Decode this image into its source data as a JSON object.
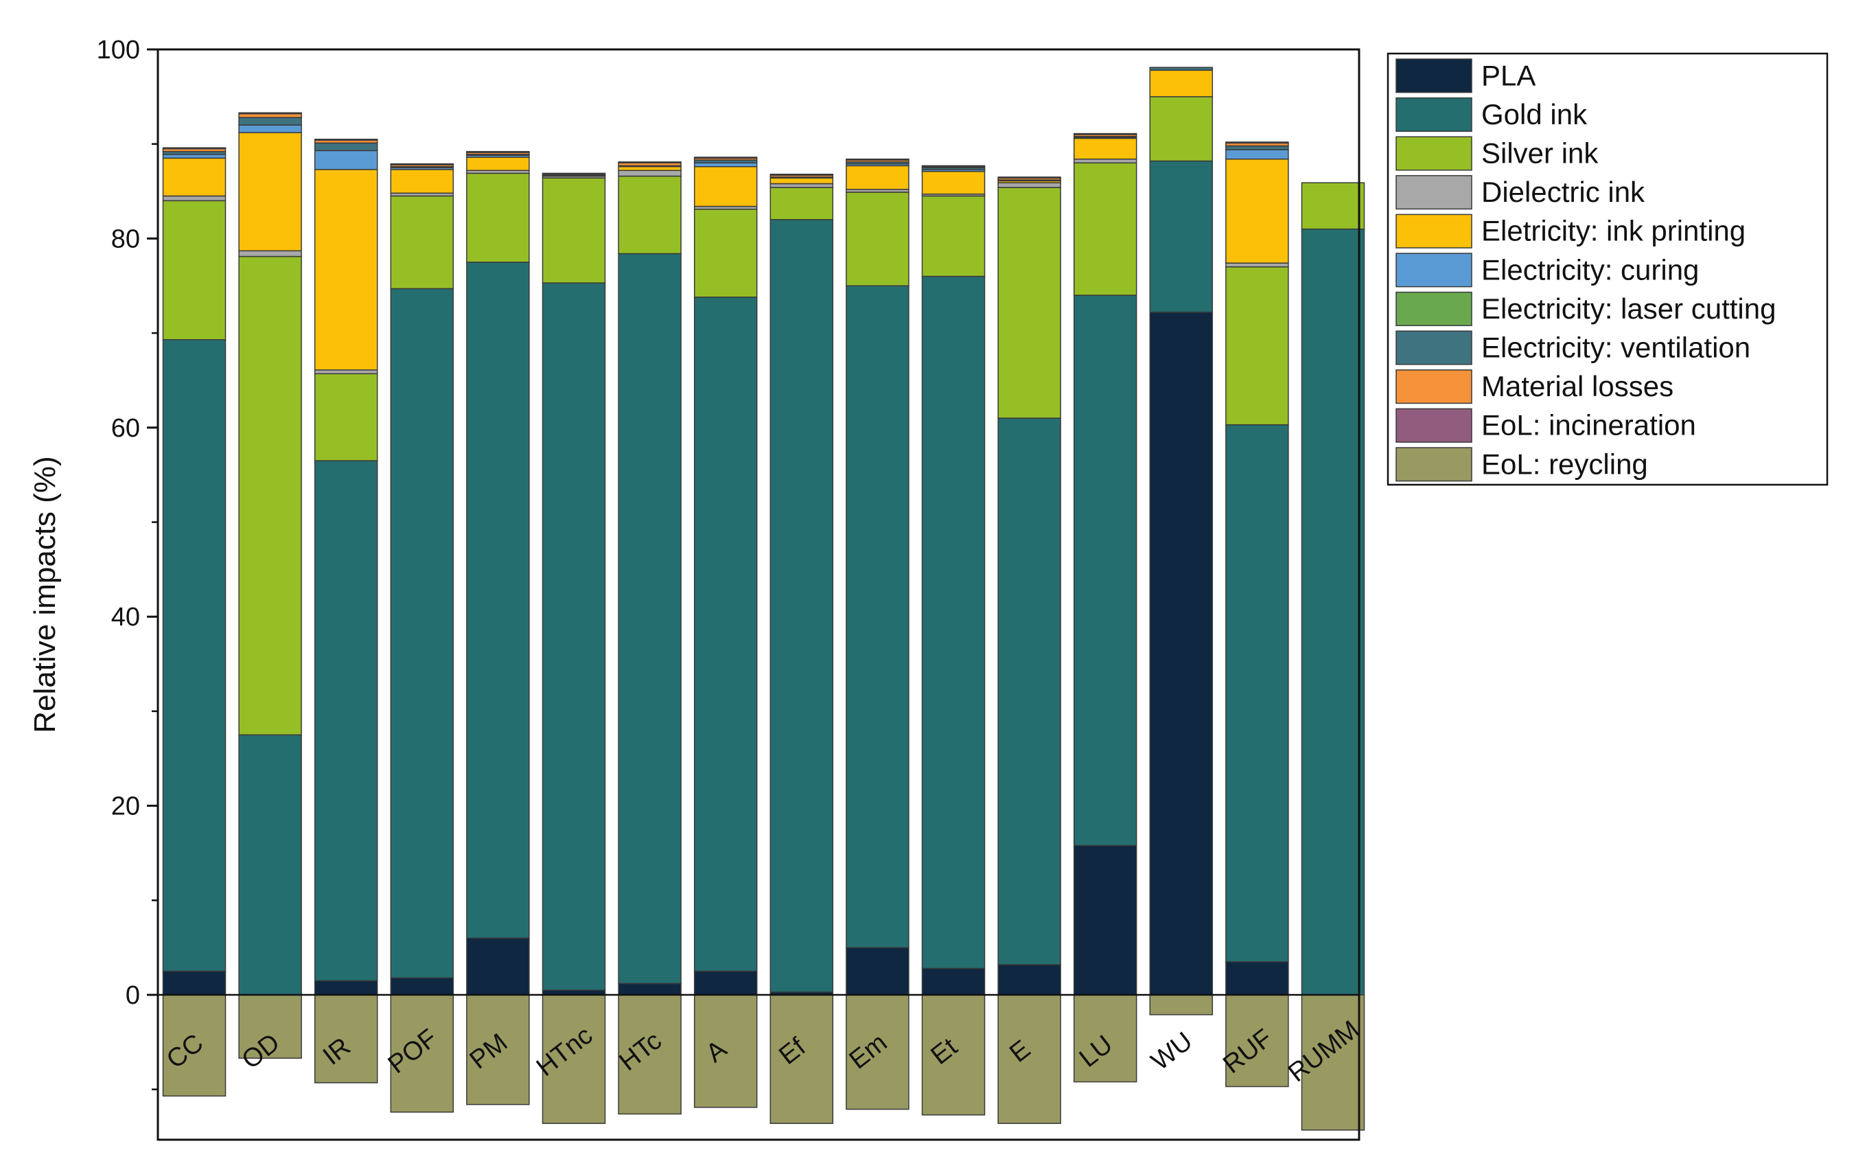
{
  "chart_data": {
    "type": "bar",
    "stacked": true,
    "title": "",
    "xlabel": "",
    "ylabel": "Relative impacts (%)",
    "ylim": [
      -15,
      100
    ],
    "yticks": [
      0,
      20,
      40,
      60,
      80,
      100
    ],
    "legend_position": "right",
    "categories": [
      "CC",
      "OD",
      "IR",
      "POF",
      "PM",
      "HTnc",
      "HTc",
      "A",
      "Ef",
      "Em",
      "Et",
      "E",
      "LU",
      "WU",
      "RUF",
      "RUMM"
    ],
    "series": [
      {
        "name": "PLA",
        "color": "#0f2740",
        "values": [
          2.5,
          0,
          1.5,
          1.8,
          6,
          0.5,
          1.2,
          2.5,
          0.3,
          5,
          2.8,
          3.2,
          15.8,
          72.2,
          3.5,
          0
        ]
      },
      {
        "name": "Gold ink",
        "color": "#256e70",
        "values": [
          66.8,
          27.5,
          55,
          72.9,
          71.5,
          74.8,
          77.2,
          71.3,
          81.7,
          70,
          73.2,
          57.8,
          58.2,
          16,
          56.8,
          81
        ]
      },
      {
        "name": "Silver ink",
        "color": "#96bf26",
        "values": [
          14.7,
          50.6,
          9.2,
          9.8,
          9.4,
          11.1,
          8.2,
          9.3,
          3.4,
          9.9,
          8.5,
          24.4,
          14,
          6.8,
          16.7,
          4.9
        ]
      },
      {
        "name": "Dielectric ink",
        "color": "#a8a8a8",
        "values": [
          0.5,
          0.6,
          0.4,
          0.3,
          0.3,
          0.2,
          0.6,
          0.3,
          0.4,
          0.3,
          0.2,
          0.5,
          0.4,
          0,
          0.4,
          0
        ]
      },
      {
        "name": "Eletricity: ink printing",
        "color": "#fdc009",
        "values": [
          4,
          12.5,
          21.2,
          2.5,
          1.4,
          0,
          0.4,
          4.2,
          0.6,
          2.5,
          2.4,
          0.2,
          2.2,
          2.8,
          11,
          0
        ]
      },
      {
        "name": "Electricity: curing",
        "color": "#5b9bd5",
        "values": [
          0.4,
          0.8,
          2,
          0.2,
          0.2,
          0,
          0,
          0.4,
          0,
          0.2,
          0.2,
          0,
          0.1,
          0,
          1,
          0
        ]
      },
      {
        "name": "Electricity: laser cutting",
        "color": "#6aa84f",
        "values": [
          0,
          0,
          0,
          0,
          0,
          0,
          0,
          0,
          0,
          0,
          0,
          0,
          0,
          0,
          0,
          0
        ]
      },
      {
        "name": "Electricity: ventilation",
        "color": "#3f7380",
        "values": [
          0.3,
          0.8,
          0.8,
          0.1,
          0.1,
          0.1,
          0.1,
          0.3,
          0.1,
          0.2,
          0.2,
          0.1,
          0.1,
          0.3,
          0.4,
          0
        ]
      },
      {
        "name": "Material losses",
        "color": "#f5923a",
        "values": [
          0.3,
          0.4,
          0.3,
          0.2,
          0.2,
          0.1,
          0.3,
          0.2,
          0.2,
          0.2,
          0.1,
          0.2,
          0.2,
          0,
          0.3,
          0
        ]
      },
      {
        "name": "EoL: incineration",
        "color": "#915c7d",
        "values": [
          0.1,
          0.1,
          0.1,
          0.1,
          0.1,
          0.1,
          0.1,
          0.1,
          0.1,
          0.1,
          0.1,
          0.1,
          0.1,
          0,
          0.1,
          0
        ]
      },
      {
        "name": "EoL: reycling",
        "color": "#999a62",
        "values": [
          -10.7,
          -6.7,
          -9.3,
          -12.4,
          -11.6,
          -13.6,
          -12.6,
          -11.9,
          -13.6,
          -12.1,
          -12.7,
          -13.6,
          -9.2,
          -2.1,
          -9.7,
          -14.3
        ]
      }
    ]
  }
}
